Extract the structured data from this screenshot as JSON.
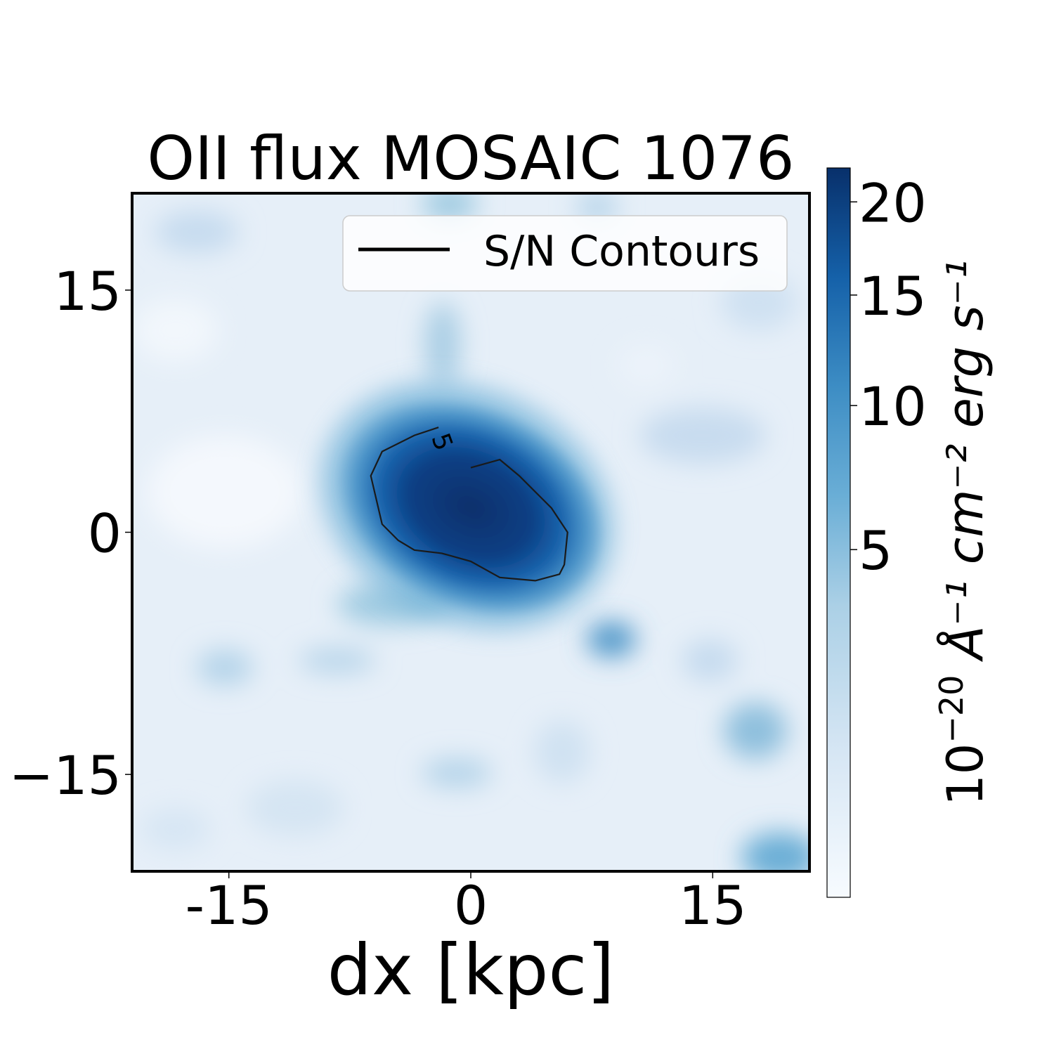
{
  "chart_data": {
    "type": "heatmap",
    "title": "OII flux MOSAIC 1076",
    "xlabel": "dx [kpc]",
    "ylabel": "",
    "x_ticks": [
      "-15",
      "0",
      "15"
    ],
    "y_ticks": [
      "15",
      "0",
      "−15"
    ],
    "x_tick_values": [
      -15,
      0,
      15
    ],
    "y_tick_values": [
      15,
      0,
      -15
    ],
    "xlim": [
      -21,
      21
    ],
    "ylim": [
      -21,
      21
    ],
    "colormap": "Blues",
    "colorbar": {
      "label_base": "10",
      "label_exp": "−20",
      "label_rest": " Å⁻¹ cm⁻² erg s⁻¹",
      "ticks": [
        "5",
        "10",
        "15",
        "20"
      ],
      "tick_values": [
        5,
        10,
        15,
        20
      ],
      "scale": "sqrt",
      "range": [
        0,
        22
      ]
    },
    "legend": {
      "label": "S/N Contours",
      "position": "upper right"
    },
    "contour": {
      "label": "5",
      "level": 5,
      "points": [
        [
          -2.0,
          6.5
        ],
        [
          -3.5,
          6.0
        ],
        [
          -5.5,
          5.0
        ],
        [
          -6.2,
          3.5
        ],
        [
          -5.5,
          0.5
        ],
        [
          -4.5,
          -0.5
        ],
        [
          -3.5,
          -1.1
        ],
        [
          -1.8,
          -1.3
        ],
        [
          0.0,
          -1.8
        ],
        [
          1.8,
          -2.8
        ],
        [
          4.0,
          -3.0
        ],
        [
          5.5,
          -2.6
        ],
        [
          5.8,
          -2.0
        ],
        [
          6.0,
          0.0
        ],
        [
          5.0,
          1.5
        ],
        [
          3.0,
          3.5
        ],
        [
          1.8,
          4.5
        ],
        [
          0.0,
          4.0
        ]
      ]
    },
    "peak": {
      "x": 1.5,
      "y": 1.0,
      "value": 22
    }
  }
}
